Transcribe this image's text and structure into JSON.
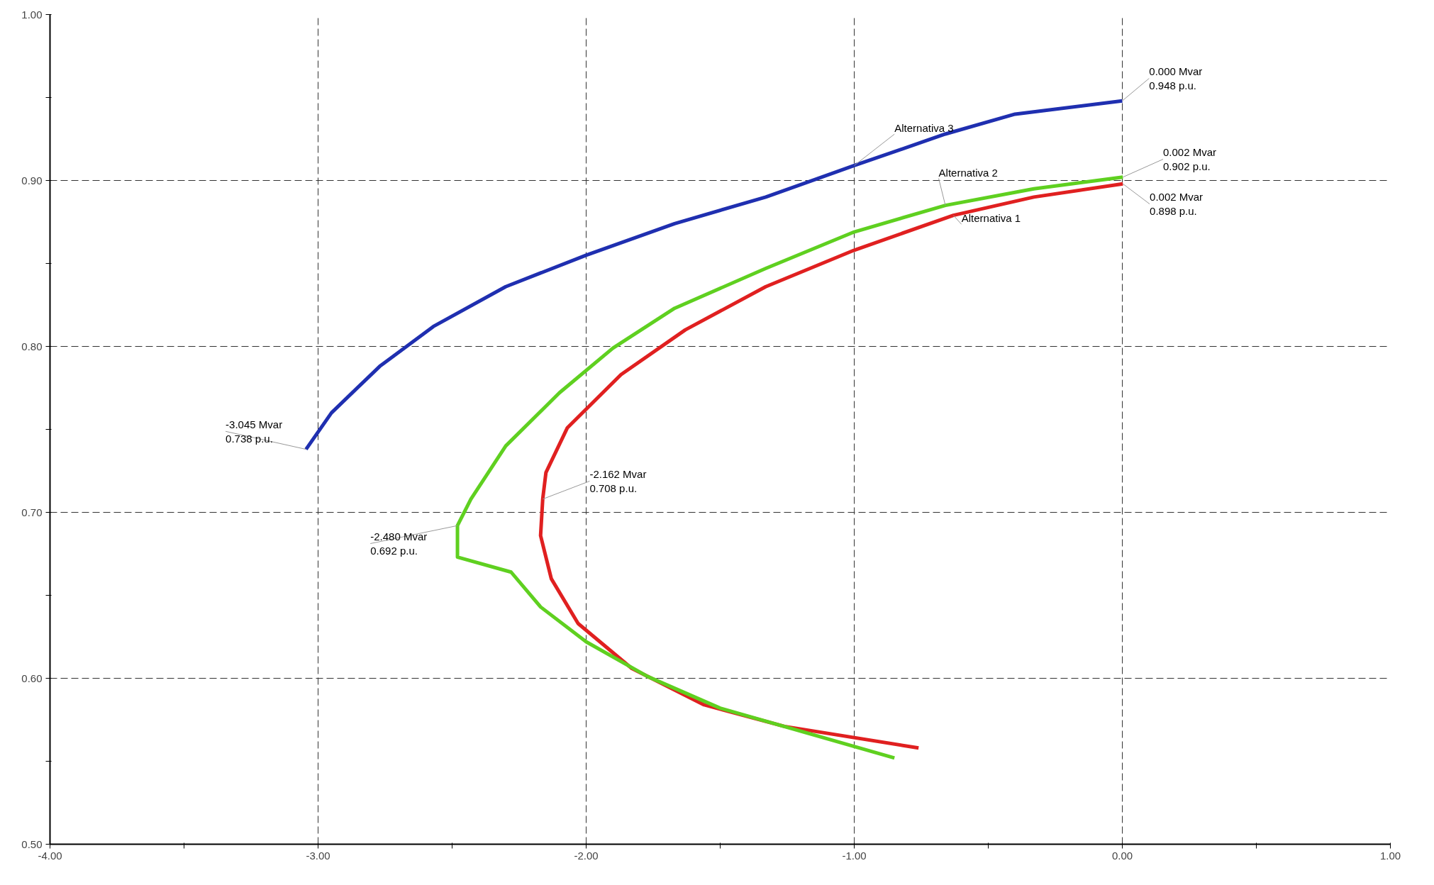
{
  "chart_data": {
    "type": "line",
    "grid": true,
    "line_style": "solid",
    "marker": "none",
    "xlim": [
      -4.0,
      1.0
    ],
    "ylim": [
      0.5,
      1.0
    ],
    "xticks": [
      {
        "value": -4.0,
        "label": "-4.00"
      },
      {
        "value": -3.5,
        "label": null
      },
      {
        "value": -3.0,
        "label": "-3.00"
      },
      {
        "value": -2.5,
        "label": null
      },
      {
        "value": -2.0,
        "label": "-2.00"
      },
      {
        "value": -1.5,
        "label": null
      },
      {
        "value": -1.0,
        "label": "-1.00"
      },
      {
        "value": -0.5,
        "label": null
      },
      {
        "value": 0.0,
        "label": "0.00"
      },
      {
        "value": 0.5,
        "label": null
      },
      {
        "value": 1.0,
        "label": "1.00"
      }
    ],
    "yticks": [
      {
        "value": 0.5,
        "label": "0.50"
      },
      {
        "value": 0.55,
        "label": null
      },
      {
        "value": 0.6,
        "label": "0.60"
      },
      {
        "value": 0.65,
        "label": null
      },
      {
        "value": 0.7,
        "label": "0.70"
      },
      {
        "value": 0.75,
        "label": null
      },
      {
        "value": 0.8,
        "label": "0.80"
      },
      {
        "value": 0.85,
        "label": null
      },
      {
        "value": 0.9,
        "label": "0.90"
      },
      {
        "value": 0.95,
        "label": null
      },
      {
        "value": 1.0,
        "label": "1.00"
      }
    ],
    "series": [
      {
        "name": "Alternativa 1",
        "color": "#e02020",
        "x": [
          0.002,
          -0.33,
          -0.63,
          -1.0,
          -1.33,
          -1.63,
          -1.87,
          -2.07,
          -2.15,
          -2.162,
          -2.17,
          -2.13,
          -2.03,
          -1.83,
          -1.56,
          -1.26,
          -0.76
        ],
        "values": [
          0.898,
          0.89,
          0.879,
          0.858,
          0.836,
          0.81,
          0.783,
          0.751,
          0.724,
          0.708,
          0.686,
          0.66,
          0.633,
          0.606,
          0.584,
          0.571,
          0.558
        ]
      },
      {
        "name": "Alternativa 2",
        "color": "#5fd020",
        "x": [
          0.002,
          -0.33,
          -0.66,
          -1.0,
          -1.33,
          -1.67,
          -1.9,
          -2.1,
          -2.3,
          -2.43,
          -2.48,
          -2.48,
          -2.28,
          -2.17,
          -2.0,
          -1.77,
          -1.5,
          -0.85
        ],
        "values": [
          0.902,
          0.895,
          0.885,
          0.869,
          0.847,
          0.823,
          0.799,
          0.772,
          0.74,
          0.708,
          0.692,
          0.673,
          0.664,
          0.643,
          0.622,
          0.601,
          0.582,
          0.552
        ]
      },
      {
        "name": "Alternativa 3",
        "color": "#1f2fb0",
        "x": [
          -3.045,
          -2.95,
          -2.77,
          -2.57,
          -2.3,
          -2.0,
          -1.67,
          -1.33,
          -1.0,
          -0.66,
          -0.4,
          0.0
        ],
        "values": [
          0.738,
          0.76,
          0.788,
          0.812,
          0.836,
          0.855,
          0.874,
          0.89,
          0.909,
          0.928,
          0.94,
          0.948
        ]
      }
    ],
    "annotations": [
      {
        "text": "-3.045 Mvar\n0.738 p.u.",
        "x": -3.045,
        "y": 0.738
      },
      {
        "text": "-2.480 Mvar\n0.692 p.u.",
        "x": -2.48,
        "y": 0.692
      },
      {
        "text": "-2.162 Mvar\n0.708 p.u.",
        "x": -2.162,
        "y": 0.708
      },
      {
        "text": "0.000 Mvar\n0.948 p.u.",
        "x": 0.0,
        "y": 0.948
      },
      {
        "text": "0.002 Mvar\n0.902 p.u.",
        "x": 0.002,
        "y": 0.902
      },
      {
        "text": "0.002 Mvar\n0.898 p.u.",
        "x": 0.002,
        "y": 0.898
      }
    ]
  }
}
